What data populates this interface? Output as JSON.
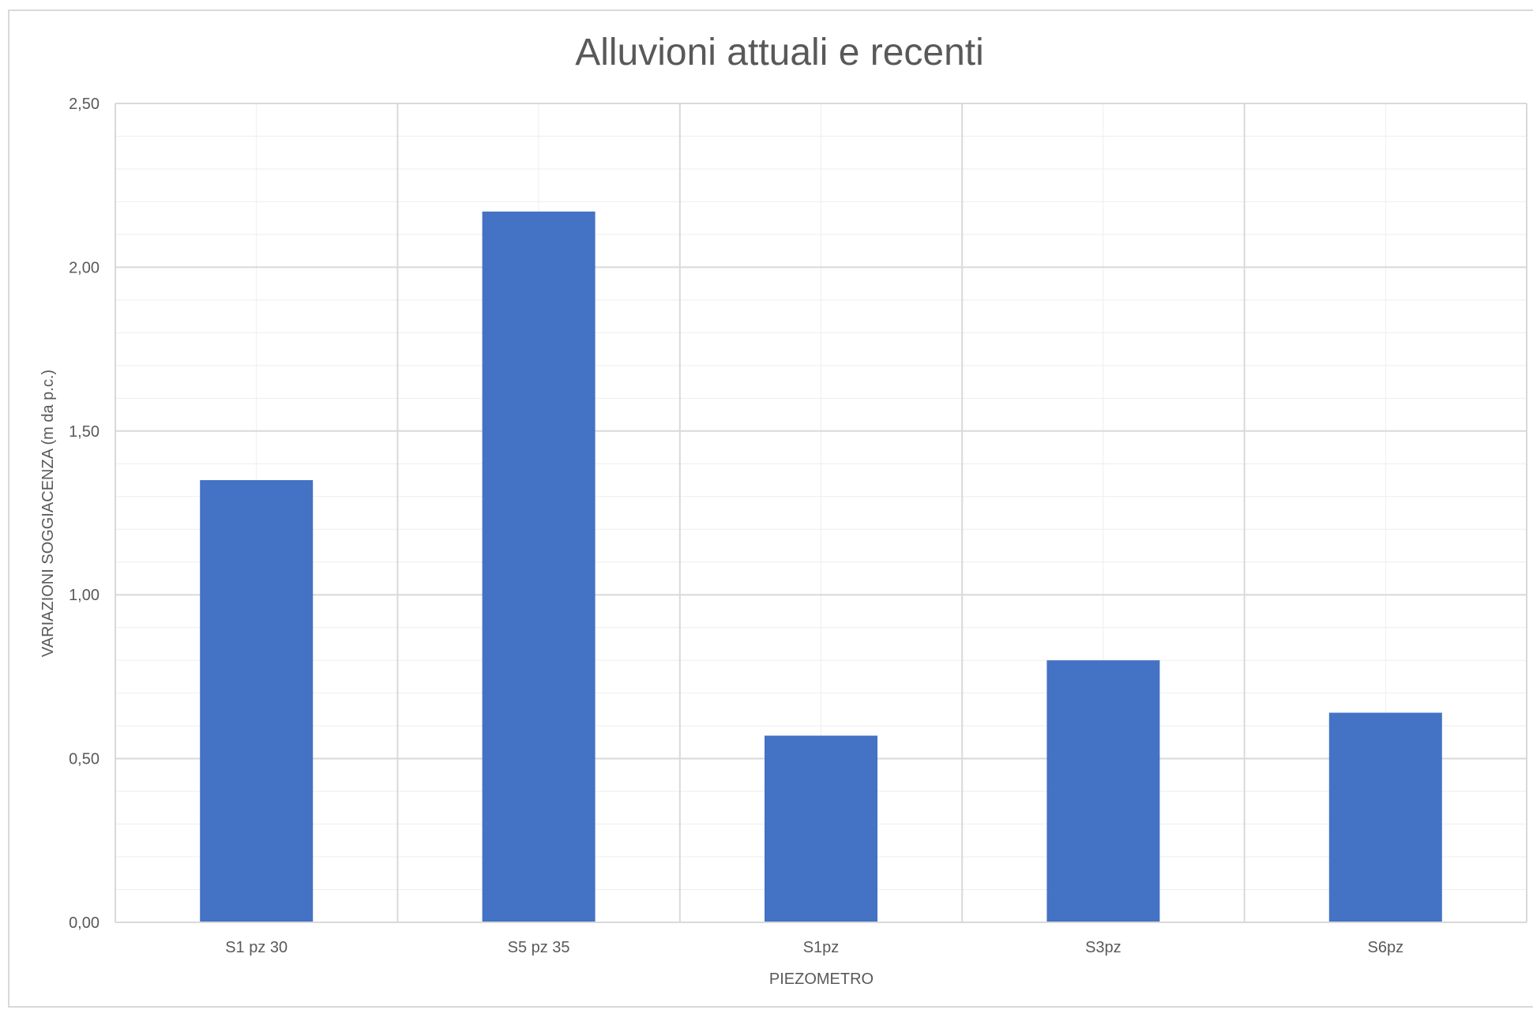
{
  "chart_data": {
    "type": "bar",
    "title": "Alluvioni attuali e recenti",
    "xlabel": "PIEZOMETRO",
    "ylabel": "VARIAZIONI SOGGIACENZA (m da p.c.)",
    "categories": [
      "S1 pz 30",
      "S5 pz 35",
      "S1pz",
      "S3pz",
      "S6pz"
    ],
    "values": [
      1.35,
      2.17,
      0.57,
      0.8,
      0.64
    ],
    "ylim": [
      0,
      2.5
    ],
    "yticks": [
      "0,00",
      "0,50",
      "1,00",
      "1,50",
      "2,00",
      "2,50"
    ],
    "major_grid": true,
    "minor_grid": true,
    "legend": "none",
    "bar_color": "#4472c4",
    "grid_color": "#d9d9d9",
    "minor_grid_color": "#eeeeee",
    "text_color": "#595959"
  }
}
